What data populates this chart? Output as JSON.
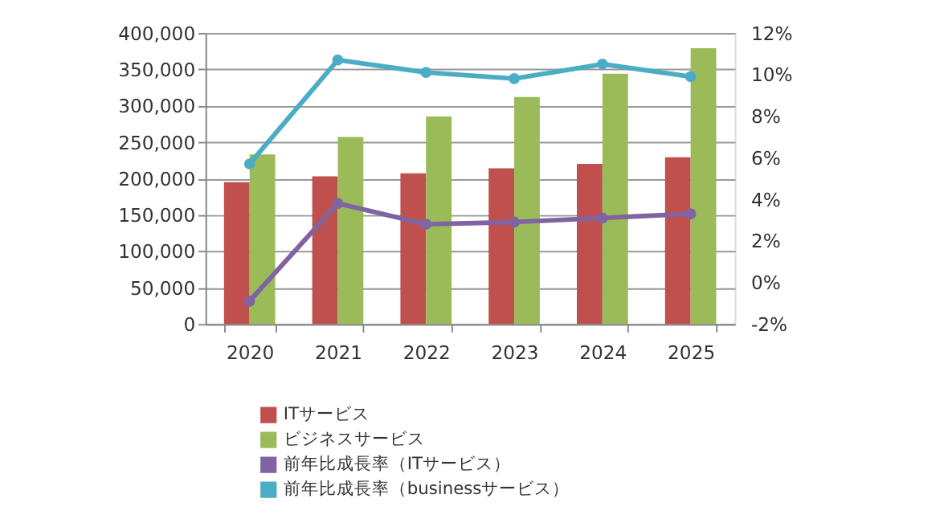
{
  "chart_data": {
    "type": "bar",
    "categories": [
      "2020",
      "2021",
      "2022",
      "2023",
      "2024",
      "2025"
    ],
    "series": [
      {
        "name": "ITサービス",
        "color": "#c0504d",
        "values": [
          195000,
          203000,
          207000,
          214000,
          220000,
          229000
        ]
      },
      {
        "name": "ビジネスサービス",
        "color": "#9bbb59",
        "values": [
          233000,
          257000,
          285000,
          312000,
          344000,
          379000
        ]
      },
      {
        "name": "前年比成長率（ITサービス）",
        "type": "line",
        "axis": "y2",
        "color": "#8064a2",
        "values": [
          -0.9,
          3.8,
          2.8,
          2.9,
          3.1,
          3.3
        ]
      },
      {
        "name": "前年比成長率（businessサービス）",
        "type": "line",
        "axis": "y2",
        "color": "#4bacc6",
        "values": [
          5.7,
          10.7,
          10.1,
          9.8,
          10.5,
          9.9
        ]
      }
    ],
    "ylim": [
      0,
      400000
    ],
    "yticks": [
      {
        "value": 0,
        "label": "0"
      },
      {
        "value": 50000,
        "label": "50,000"
      },
      {
        "value": 100000,
        "label": "100,000"
      },
      {
        "value": 150000,
        "label": "150,000"
      },
      {
        "value": 200000,
        "label": "200,000"
      },
      {
        "value": 250000,
        "label": "250,000"
      },
      {
        "value": 300000,
        "label": "300,000"
      },
      {
        "value": 350000,
        "label": "350,000"
      },
      {
        "value": 400000,
        "label": "400,000"
      }
    ],
    "y2lim": [
      -2,
      12
    ],
    "y2ticks": [
      {
        "value": -2,
        "label": "-2%"
      },
      {
        "value": 0,
        "label": "0%"
      },
      {
        "value": 2,
        "label": "2%"
      },
      {
        "value": 4,
        "label": "4%"
      },
      {
        "value": 6,
        "label": "6%"
      },
      {
        "value": 8,
        "label": "8%"
      },
      {
        "value": 10,
        "label": "10%"
      },
      {
        "value": 12,
        "label": "12%"
      }
    ],
    "grid": "y",
    "legend": "bottom",
    "marker": "circle"
  }
}
